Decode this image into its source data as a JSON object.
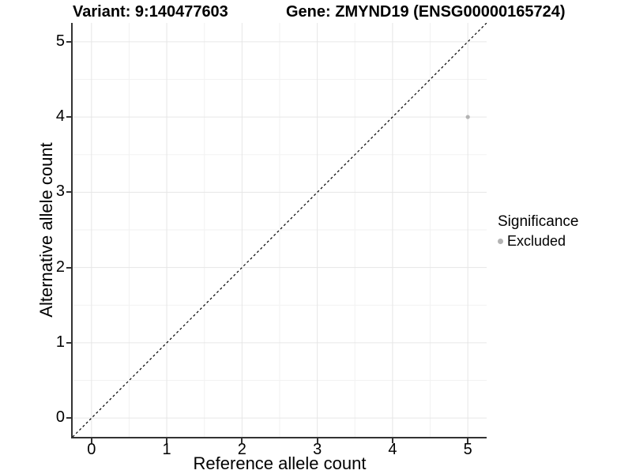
{
  "header": {
    "variant_title": "Variant: 9:140477603",
    "gene_title": "Gene: ZMYND19 (ENSG00000165724)"
  },
  "chart_data": {
    "type": "scatter",
    "xlabel": "Reference allele count",
    "ylabel": "Alternative allele count",
    "xlim": [
      -0.25,
      5.25
    ],
    "ylim": [
      -0.25,
      5.25
    ],
    "x_ticks": [
      "0",
      "1",
      "2",
      "3",
      "4",
      "5"
    ],
    "y_ticks": [
      "0",
      "1",
      "2",
      "3",
      "4",
      "5"
    ],
    "minor_gridlines": [
      0.5,
      1.5,
      2.5,
      3.5,
      4.5
    ],
    "grid": true,
    "points": [
      {
        "x": 5,
        "y": 4,
        "series": "Excluded",
        "color": "#b3b3b3"
      }
    ],
    "reference_line": {
      "equation": "y = x",
      "style": "dashed",
      "color": "#000000"
    },
    "legend": {
      "title": "Significance",
      "position": "right",
      "items": [
        {
          "label": "Excluded",
          "color": "#b3b3b3",
          "marker": "circle"
        }
      ]
    }
  },
  "colors": {
    "background": "#ffffff",
    "grid_major": "#e6e6e6",
    "grid_minor": "#f2f2f2",
    "axis_line": "#333333",
    "text": "#000000",
    "point": "#b3b3b3"
  }
}
